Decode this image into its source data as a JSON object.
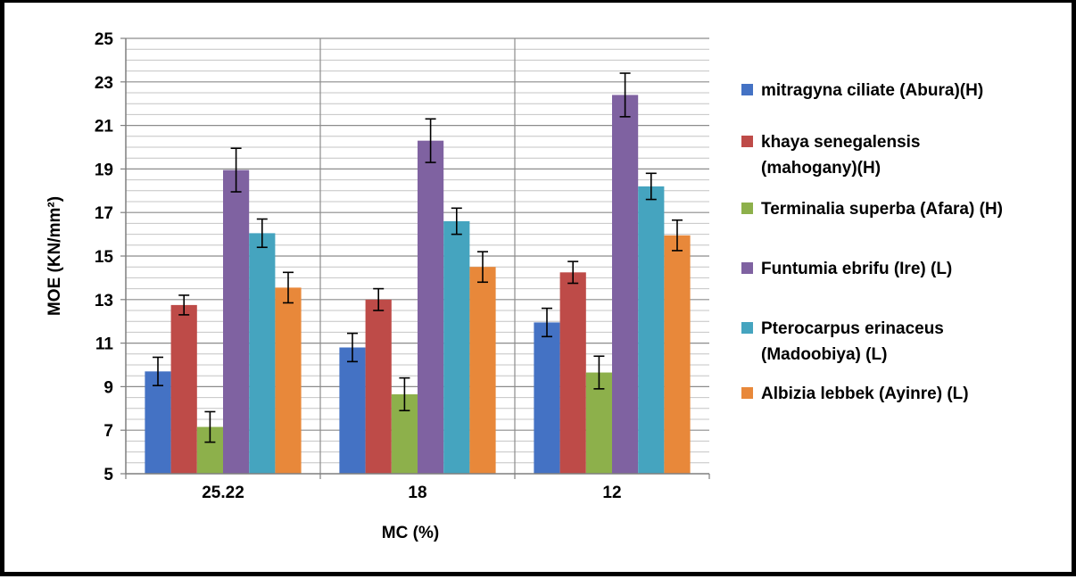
{
  "chart_data": {
    "type": "bar",
    "xlabel": "MC (%)",
    "ylabel": "MOE (KN/mm²)",
    "categories": [
      "25.22",
      "18",
      "12"
    ],
    "ylim": [
      5,
      25
    ],
    "yticks": [
      5,
      7,
      9,
      11,
      13,
      15,
      17,
      19,
      21,
      23,
      25
    ],
    "grid": "horizontal minor and major",
    "error_bars": true,
    "legend_position": "right",
    "series": [
      {
        "name": "mitragyna ciliate (Abura)(H)",
        "legend_lines": [
          "mitragyna ciliate (Abura)(H)"
        ],
        "color": "#4472C4",
        "values": [
          9.7,
          10.8,
          11.95
        ],
        "errors": [
          0.65,
          0.65,
          0.65
        ]
      },
      {
        "name": "khaya senegalensis (mahogany)(H)",
        "legend_lines": [
          "khaya senegalensis",
          "(mahogany)(H)"
        ],
        "color": "#BE4B48",
        "values": [
          12.75,
          13.0,
          14.25
        ],
        "errors": [
          0.45,
          0.5,
          0.5
        ]
      },
      {
        "name": "Terminalia superba (Afara) (H)",
        "legend_lines": [
          "Terminalia superba (Afara) (H)"
        ],
        "color": "#8DB04B",
        "values": [
          7.15,
          8.65,
          9.65
        ],
        "errors": [
          0.7,
          0.75,
          0.75
        ]
      },
      {
        "name": "Funtumia ebrifu (Ire) (L)",
        "legend_lines": [
          "Funtumia ebrifu (Ire) (L)"
        ],
        "color": "#7F62A1",
        "values": [
          18.95,
          20.3,
          22.4
        ],
        "errors": [
          1.0,
          1.0,
          1.0
        ]
      },
      {
        "name": "Pterocarpus erinaceus (Madoobiya) (L)",
        "legend_lines": [
          "Pterocarpus erinaceus",
          "(Madoobiya) (L)"
        ],
        "color": "#45A4BF",
        "values": [
          16.05,
          16.6,
          18.2
        ],
        "errors": [
          0.65,
          0.6,
          0.6
        ]
      },
      {
        "name": "Albizia lebbek (Ayinre) (L)",
        "legend_lines": [
          "Albizia lebbek (Ayinre) (L)"
        ],
        "color": "#E8883A",
        "values": [
          13.55,
          14.5,
          15.95
        ],
        "errors": [
          0.7,
          0.7,
          0.7
        ]
      }
    ]
  }
}
